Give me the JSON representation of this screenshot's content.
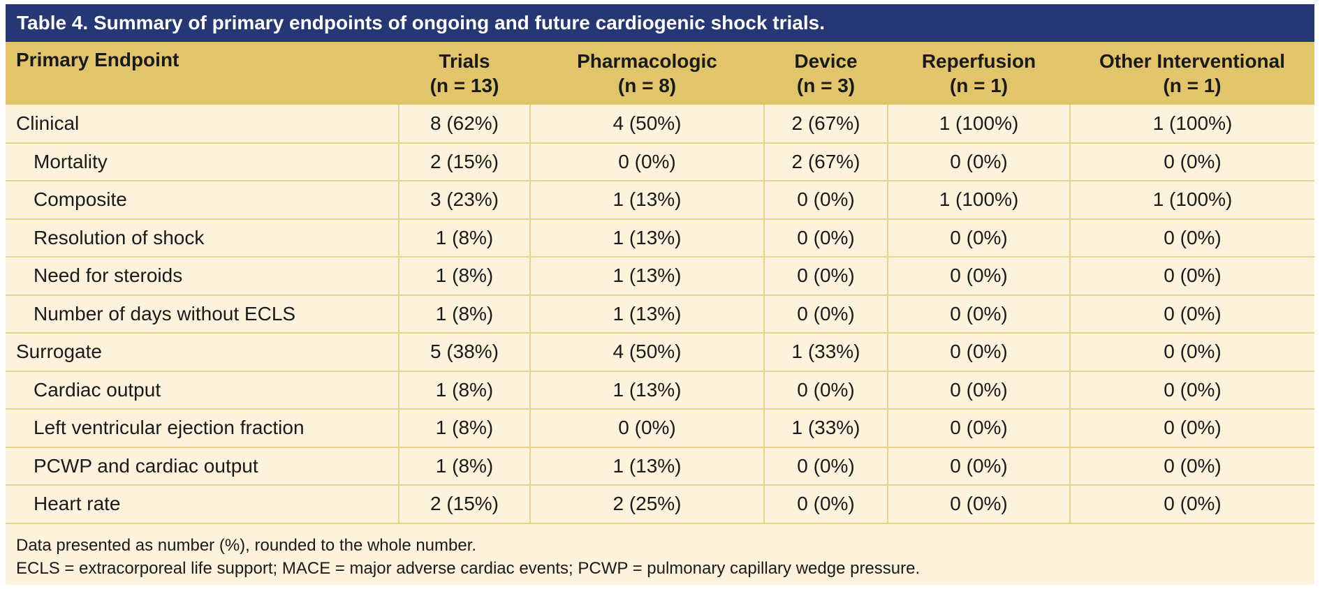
{
  "title": "Table 4. Summary of primary endpoints of ongoing and future cardiogenic shock trials.",
  "columns": [
    {
      "line1": "Primary Endpoint",
      "line2": ""
    },
    {
      "line1": "Trials",
      "line2": "(n = 13)"
    },
    {
      "line1": "Pharmacologic",
      "line2": "(n = 8)"
    },
    {
      "line1": "Device",
      "line2": "(n = 3)"
    },
    {
      "line1": "Reperfusion",
      "line2": "(n = 1)"
    },
    {
      "line1": "Other Interventional",
      "line2": "(n = 1)"
    }
  ],
  "rows": [
    {
      "label": "Clinical",
      "sub": false,
      "cells": [
        "8 (62%)",
        "4 (50%)",
        "2 (67%)",
        "1 (100%)",
        "1 (100%)"
      ]
    },
    {
      "label": "Mortality",
      "sub": true,
      "cells": [
        "2 (15%)",
        "0 (0%)",
        "2 (67%)",
        "0 (0%)",
        "0 (0%)"
      ]
    },
    {
      "label": "Composite",
      "sub": true,
      "cells": [
        "3 (23%)",
        "1 (13%)",
        "0 (0%)",
        "1 (100%)",
        "1 (100%)"
      ]
    },
    {
      "label": "Resolution of shock",
      "sub": true,
      "cells": [
        "1 (8%)",
        "1 (13%)",
        "0 (0%)",
        "0 (0%)",
        "0 (0%)"
      ]
    },
    {
      "label": "Need for steroids",
      "sub": true,
      "cells": [
        "1 (8%)",
        "1 (13%)",
        "0 (0%)",
        "0 (0%)",
        "0 (0%)"
      ]
    },
    {
      "label": "Number of days without ECLS",
      "sub": true,
      "cells": [
        "1 (8%)",
        "1 (13%)",
        "0 (0%)",
        "0 (0%)",
        "0 (0%)"
      ]
    },
    {
      "label": "Surrogate",
      "sub": false,
      "cells": [
        "5 (38%)",
        "4 (50%)",
        "1 (33%)",
        "0 (0%)",
        "0 (0%)"
      ]
    },
    {
      "label": "Cardiac output",
      "sub": true,
      "cells": [
        "1 (8%)",
        "1 (13%)",
        "0 (0%)",
        "0 (0%)",
        "0 (0%)"
      ]
    },
    {
      "label": "Left ventricular ejection fraction",
      "sub": true,
      "cells": [
        "1 (8%)",
        "0 (0%)",
        "1 (33%)",
        "0 (0%)",
        "0 (0%)"
      ]
    },
    {
      "label": "PCWP and cardiac output",
      "sub": true,
      "cells": [
        "1 (8%)",
        "1 (13%)",
        "0 (0%)",
        "0 (0%)",
        "0 (0%)"
      ]
    },
    {
      "label": "Heart rate",
      "sub": true,
      "cells": [
        "2 (15%)",
        "2 (25%)",
        "0 (0%)",
        "0 (0%)",
        "0 (0%)"
      ]
    }
  ],
  "footnotes": [
    "Data presented as number (%), rounded to the whole number.",
    "ECLS = extracorporeal life support; MACE = major adverse cardiac events; PCWP = pulmonary capillary wedge pressure."
  ],
  "colors": {
    "title_bar": "#263775",
    "header_bg": "#e2c56b",
    "body_bg": "#fdf3dc",
    "grid_line": "#e9d28a"
  }
}
